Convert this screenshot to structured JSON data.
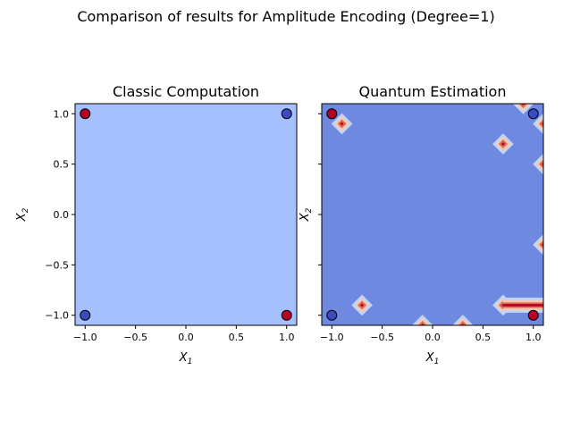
{
  "figure": {
    "suptitle": "Comparison of results for Amplitude Encoding (Degree=1)"
  },
  "colors": {
    "class_red": "#b40426",
    "class_blue": "#3b4cc0",
    "classic_bg": "#a6c0fd",
    "quantum_bg": "#7089e0",
    "hotspot_outer": "#c0d4f5",
    "hotspot_mid": "#f2cbb7",
    "hotspot_inner": "#e36b54",
    "hotspot_core": "#b40426"
  },
  "chart_data": [
    {
      "type": "heatmap",
      "title": "Classic Computation",
      "xlabel": "X",
      "xlabel_sub": "1",
      "ylabel": "X",
      "ylabel_sub": "2",
      "xlim": [
        -1.1,
        1.1
      ],
      "ylim": [
        -1.1,
        1.1
      ],
      "xticks": [
        "−1.0",
        "−0.5",
        "0.0",
        "0.5",
        "1.0"
      ],
      "yticks": [
        "−1.0",
        "−0.5",
        "0.0",
        "0.5",
        "1.0"
      ],
      "background_level": "uniform",
      "points": [
        {
          "x": -1,
          "y": 1,
          "class": "red"
        },
        {
          "x": 1,
          "y": 1,
          "class": "blue"
        },
        {
          "x": -1,
          "y": -1,
          "class": "blue"
        },
        {
          "x": 1,
          "y": -1,
          "class": "red"
        }
      ]
    },
    {
      "type": "heatmap",
      "title": "Quantum Estimation",
      "xlabel": "X",
      "xlabel_sub": "1",
      "ylabel": "X",
      "ylabel_sub": "2",
      "xlim": [
        -1.1,
        1.1
      ],
      "ylim": [
        -1.1,
        1.1
      ],
      "xticks": [
        "−1.0",
        "−0.5",
        "0.0",
        "0.5",
        "1.0"
      ],
      "yticks_shown": false,
      "hotspots": [
        {
          "x": -0.9,
          "y": 0.9
        },
        {
          "x": 0.9,
          "y": 1.1
        },
        {
          "x": 1.1,
          "y": 0.9
        },
        {
          "x": 0.7,
          "y": 0.7
        },
        {
          "x": 1.1,
          "y": 0.5
        },
        {
          "x": 1.1,
          "y": -0.3
        },
        {
          "x": -0.7,
          "y": -0.9
        },
        {
          "x": -0.1,
          "y": -1.1
        },
        {
          "x": 0.3,
          "y": -1.1
        },
        {
          "x": 0.7,
          "y": -0.9
        }
      ],
      "ridge": {
        "x_start": 0.7,
        "x_end": 1.1,
        "y": -0.9
      },
      "points": [
        {
          "x": -1,
          "y": 1,
          "class": "red"
        },
        {
          "x": 1,
          "y": 1,
          "class": "blue"
        },
        {
          "x": -1,
          "y": -1,
          "class": "blue"
        },
        {
          "x": 1,
          "y": -1,
          "class": "red"
        }
      ]
    }
  ]
}
